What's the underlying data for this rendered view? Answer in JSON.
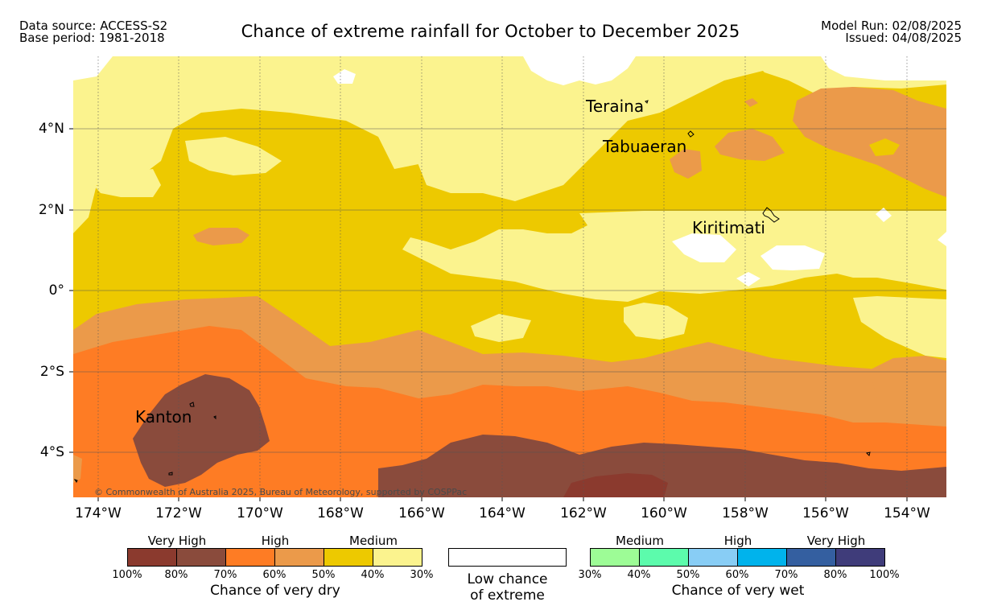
{
  "header": {
    "data_source": "Data source: ACCESS-S2",
    "base_period": "Base period: 1981-2018",
    "title": "Chance of extreme rainfall for October to December 2025",
    "model_run": "Model Run: 02/08/2025",
    "issued": "Issued: 04/08/2025"
  },
  "map": {
    "copyright": "© Commonwealth of Australia 2025, Bureau of Meteorology, supported by COSPPac",
    "lat_labels": [
      "4°N",
      "2°N",
      "0°",
      "2°S",
      "4°S"
    ],
    "lon_labels": [
      "174°W",
      "172°W",
      "170°W",
      "168°W",
      "166°W",
      "164°W",
      "162°W",
      "160°W",
      "158°W",
      "156°W",
      "154°W"
    ],
    "places": {
      "teraina": "Teraina",
      "tabuaeran": "Tabuaeran",
      "kiritimati": "Kiritimati",
      "kanton": "Kanton"
    },
    "category_colors": {
      "dry_100_80": "#8b3a2e",
      "dry_80_70": "#8a4b3c",
      "dry_70_60": "#fe7c24",
      "dry_60_50": "#eb9a4a",
      "dry_50_40": "#edc900",
      "dry_40_30": "#fbf38e",
      "low_chance": "#ffffff"
    }
  },
  "legend": {
    "dry": {
      "captions": [
        "Very High",
        "High",
        "Medium"
      ],
      "colors": [
        "#8b3a2e",
        "#8a4b3c",
        "#fe7c24",
        "#eb9a4a",
        "#edc900",
        "#fbf38e"
      ],
      "ticks": [
        "100%",
        "80%",
        "70%",
        "60%",
        "50%",
        "40%",
        "30%"
      ],
      "title": "Chance of very dry"
    },
    "low": {
      "color": "#ffffff",
      "line1": "Low chance",
      "line2": "of extreme"
    },
    "wet": {
      "captions": [
        "Medium",
        "High",
        "Very High"
      ],
      "colors": [
        "#9dfc96",
        "#5cfbac",
        "#88cdf5",
        "#00b3ec",
        "#345fa0",
        "#3f3c7a"
      ],
      "ticks": [
        "30%",
        "40%",
        "50%",
        "60%",
        "70%",
        "80%",
        "100%"
      ],
      "title": "Chance of very wet"
    }
  }
}
